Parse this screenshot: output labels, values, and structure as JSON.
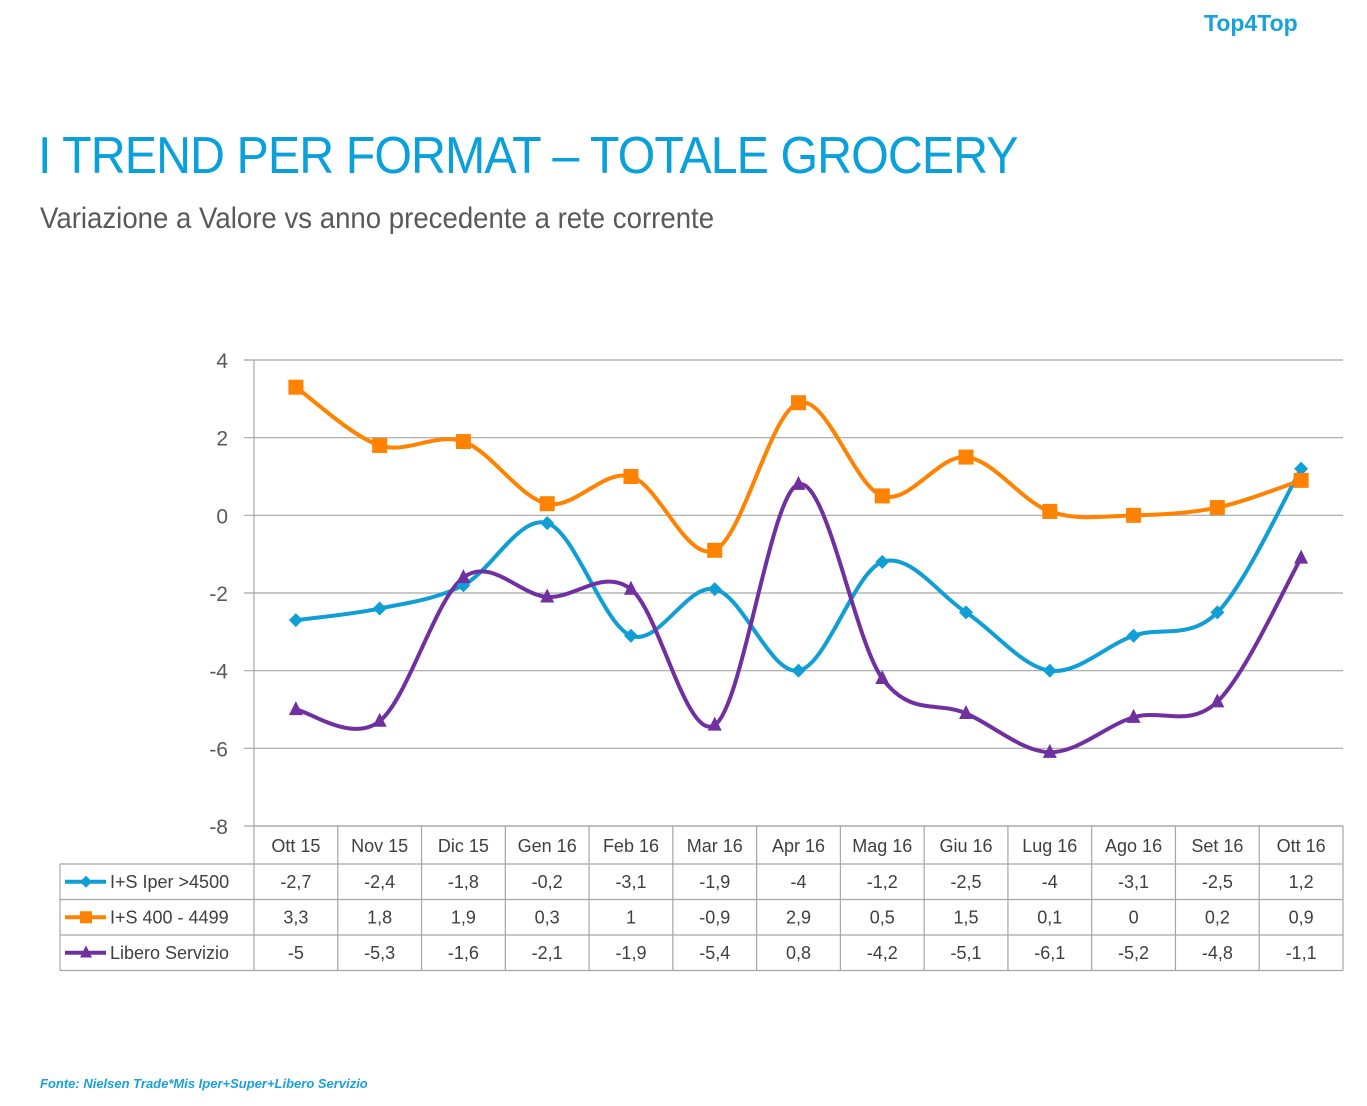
{
  "brand": "Top4Top",
  "title": "I TREND PER FORMAT – TOTALE GROCERY",
  "subtitle": "Variazione a Valore vs anno precedente a rete corrente",
  "source": "Fonte: Nielsen Trade*Mis Iper+Super+Libero Servizio",
  "chart_data": {
    "type": "line",
    "title": "I TREND PER FORMAT – TOTALE GROCERY",
    "subtitle": "Variazione a Valore vs anno precedente a rete corrente",
    "xlabel": "",
    "ylabel": "",
    "ylim": [
      -8,
      4
    ],
    "yticks": [
      "4",
      "2",
      "0",
      "-2",
      "-4",
      "-6",
      "-8"
    ],
    "ytick_values": [
      4,
      2,
      0,
      -2,
      -4,
      -6,
      -8
    ],
    "grid": true,
    "smooth": true,
    "legend": "data-table-left",
    "categories": [
      "Ott 15",
      "Nov 15",
      "Dic 15",
      "Gen 16",
      "Feb 16",
      "Mar 16",
      "Apr 16",
      "Mag 16",
      "Giu 16",
      "Lug 16",
      "Ago 16",
      "Set 16",
      "Ott 16"
    ],
    "series": [
      {
        "name": "I+S Iper >4500",
        "color": "#0f9ed5",
        "marker": "diamond",
        "values": [
          -2.7,
          -2.4,
          -1.8,
          -0.2,
          -3.1,
          -1.9,
          -4,
          -1.2,
          -2.5,
          -4,
          -3.1,
          -2.5,
          1.2
        ],
        "labels": [
          "-2,7",
          "-2,4",
          "-1,8",
          "-0,2",
          "-3,1",
          "-1,9",
          "-4",
          "-1,2",
          "-2,5",
          "-4",
          "-3,1",
          "-2,5",
          "1,2"
        ]
      },
      {
        "name": "I+S 400 - 4499",
        "color": "#ff8200",
        "marker": "square",
        "values": [
          3.3,
          1.8,
          1.9,
          0.3,
          1,
          -0.9,
          2.9,
          0.5,
          1.5,
          0.1,
          0,
          0.2,
          0.9
        ],
        "labels": [
          "3,3",
          "1,8",
          "1,9",
          "0,3",
          "1",
          "-0,9",
          "2,9",
          "0,5",
          "1,5",
          "0,1",
          "0",
          "0,2",
          "0,9"
        ]
      },
      {
        "name": "Libero Servizio",
        "color": "#7030a0",
        "marker": "triangle",
        "values": [
          -5,
          -5.3,
          -1.6,
          -2.1,
          -1.9,
          -5.4,
          0.8,
          -4.2,
          -5.1,
          -6.1,
          -5.2,
          -4.8,
          -1.1
        ],
        "labels": [
          "-5",
          "-5,3",
          "-1,6",
          "-2,1",
          "-1,9",
          "-5,4",
          "0,8",
          "-4,2",
          "-5,1",
          "-6,1",
          "-5,2",
          "-4,8",
          "-1,1"
        ]
      }
    ]
  }
}
